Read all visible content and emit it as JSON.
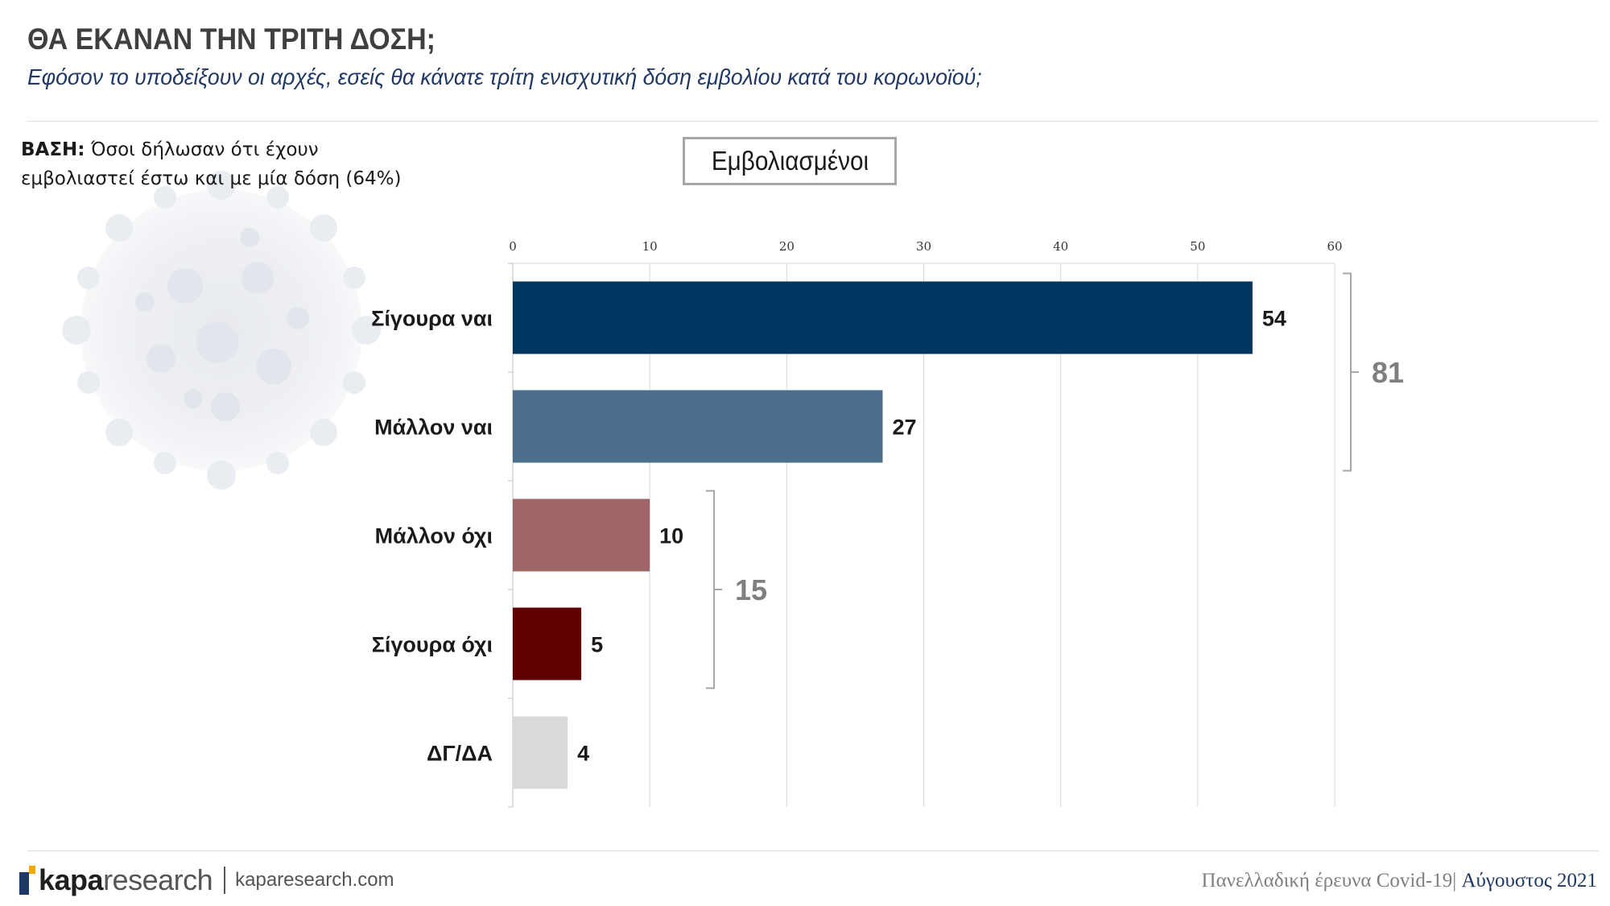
{
  "header": {
    "title": "ΘΑ ΕΚΑΝΑΝ ΤΗΝ ΤΡΙΤΗ ΔΟΣΗ;",
    "subtitle": "Εφόσον το υποδείξουν οι αρχές, εσείς θα κάνατε τρίτη ενισχυτική δόση εμβολίου κατά του κορωνοϊού;"
  },
  "base_note": {
    "label": "ΒΑΣΗ:",
    "line1": "Όσοι δήλωσαν ότι έχουν",
    "line2": "εμβολιαστεί έστω και με μία δόση (64%)"
  },
  "group_label": "Εμβολιασμένοι",
  "chart_data": {
    "type": "bar",
    "orientation": "horizontal",
    "categories": [
      "Σίγουρα ναι",
      "Μάλλον ναι",
      "Μάλλον όχι",
      "Σίγουρα όχι",
      "ΔΓ/ΔΑ"
    ],
    "values": [
      54,
      27,
      10,
      5,
      4
    ],
    "value_labels": [
      "54",
      "27",
      "10",
      "5",
      "4"
    ],
    "colors": [
      "#003660",
      "#4a6e8c",
      "#9e6666",
      "#600000",
      "#d9d9d9"
    ],
    "xlim": [
      0,
      60
    ],
    "xticks": [
      0,
      10,
      20,
      30,
      40,
      50,
      60
    ],
    "xtick_labels": [
      "0",
      "10",
      "20",
      "30",
      "40",
      "50",
      "60"
    ],
    "xaxis_position": "top",
    "grid": true,
    "brackets": [
      {
        "from": "Σίγουρα ναι",
        "to": "Μάλλον ναι",
        "total": 81,
        "label": "81"
      },
      {
        "from": "Μάλλον όχι",
        "to": "Σίγουρα όχι",
        "total": 15,
        "label": "15"
      }
    ]
  },
  "footer": {
    "logo_bold": "kapa",
    "logo_light": "research",
    "url": "kaparesearch.com",
    "survey": "Πανελλαδική έρευνα Covid-19",
    "separator": "|",
    "date": "Αύγουστος 2021"
  }
}
